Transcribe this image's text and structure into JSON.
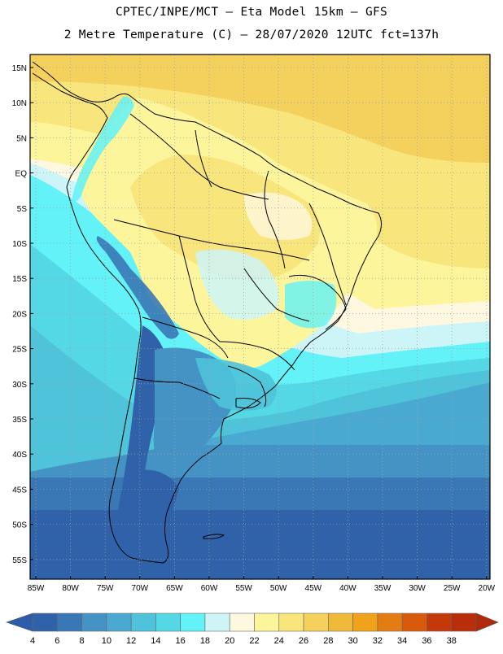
{
  "header": {
    "line1": "CPTEC/INPE/MCT –  Eta Model 15km – GFS",
    "line2": "2 Metre Temperature (C) – 28/07/2020 12UTC fct=137h"
  },
  "axes": {
    "lat_labels": [
      "15N",
      "10N",
      "5N",
      "EQ",
      "5S",
      "10S",
      "15S",
      "20S",
      "25S",
      "30S",
      "35S",
      "40S",
      "45S",
      "50S",
      "55S"
    ],
    "lon_labels": [
      "85W",
      "80W",
      "75W",
      "70W",
      "65W",
      "60W",
      "55W",
      "50W",
      "45W",
      "40W",
      "35W",
      "30W",
      "25W",
      "20W"
    ]
  },
  "colorbar": {
    "ticks": [
      "4",
      "6",
      "8",
      "10",
      "12",
      "14",
      "16",
      "18",
      "20",
      "22",
      "24",
      "26",
      "28",
      "30",
      "32",
      "34",
      "36",
      "38"
    ],
    "colors": [
      "#2f62a8",
      "#3a78b5",
      "#4593c4",
      "#4aa9d0",
      "#4ec3d9",
      "#54d8e6",
      "#62f2f8",
      "#cdf5f8",
      "#fff8e0",
      "#fdf59c",
      "#f8e57c",
      "#f4d15c",
      "#eeb838",
      "#f0a21a",
      "#e47c14",
      "#d85a0c",
      "#c4380a",
      "#b82e0a"
    ],
    "low_arrow_color": "#2d5da8",
    "high_arrow_color": "#b02a0a"
  }
}
